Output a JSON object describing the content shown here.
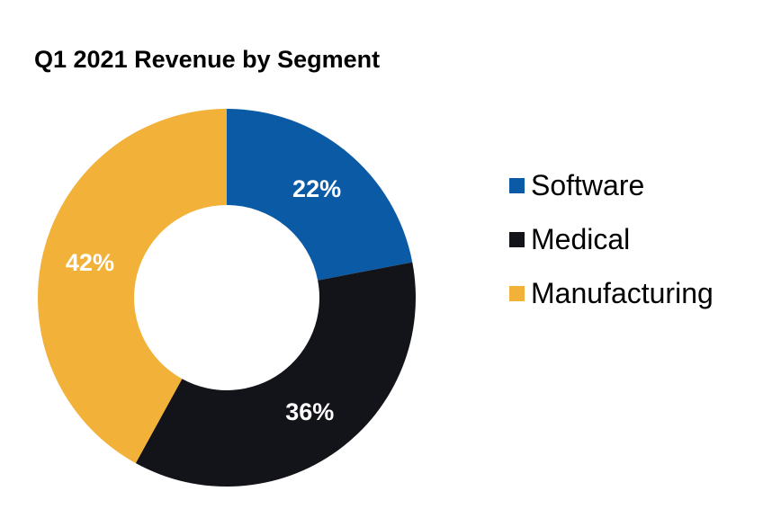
{
  "chart_data": {
    "type": "pie",
    "variant": "donut",
    "title": "Q1 2021 Revenue by Segment",
    "categories": [
      "Software",
      "Medical",
      "Manufacturing"
    ],
    "values": [
      22,
      36,
      42
    ],
    "value_labels": [
      "22%",
      "36%",
      "42%"
    ],
    "unit": "%",
    "colors": [
      "#0b5aa6",
      "#13131a",
      "#f2b138"
    ],
    "start_angle": "12 o'clock",
    "direction": "clockwise",
    "legend_position": "right",
    "legend": [
      {
        "label": "Software",
        "color": "#0b5aa6"
      },
      {
        "label": "Medical",
        "color": "#13131a"
      },
      {
        "label": "Manufacturing",
        "color": "#f2b138"
      }
    ]
  }
}
